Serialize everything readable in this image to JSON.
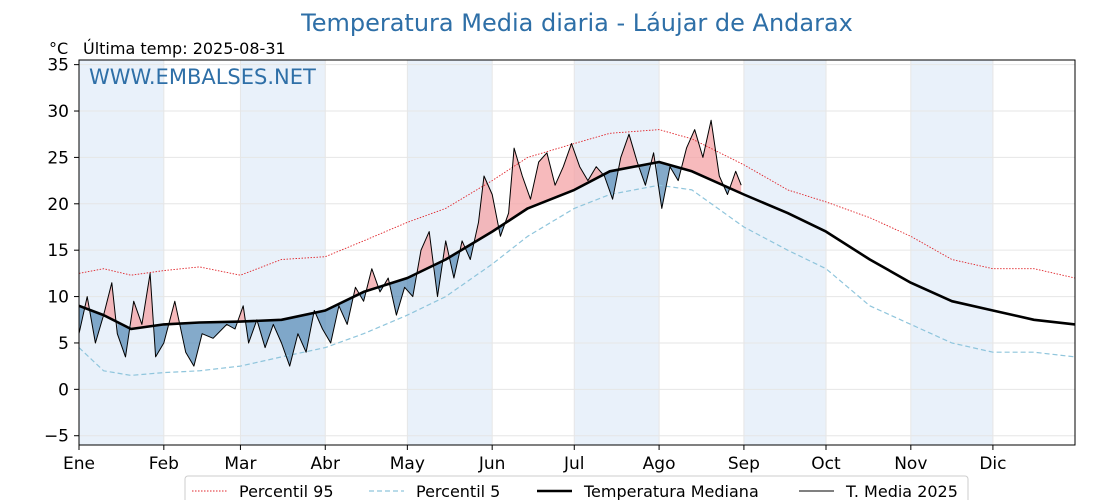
{
  "chart_data": {
    "type": "line",
    "title": "Temperatura Media diaria - Láujar de Andarax",
    "unit_label": "°C",
    "last_temp_label": "Última temp: 2025-08-31",
    "watermark": "WWW.EMBALSES.NET",
    "xlabel": "",
    "ylabel": "",
    "ylim": [
      -6,
      35.5
    ],
    "xlim_days": [
      1,
      365
    ],
    "y_ticks": [
      -5,
      0,
      5,
      10,
      15,
      20,
      25,
      30,
      35
    ],
    "y_tick_labels": [
      "−5",
      "0",
      "5",
      "10",
      "15",
      "20",
      "25",
      "30",
      "35"
    ],
    "month_labels": [
      "Ene",
      "Feb",
      "Mar",
      "Abr",
      "May",
      "Jun",
      "Jul",
      "Ago",
      "Sep",
      "Oct",
      "Nov",
      "Dic"
    ],
    "month_start_days": [
      1,
      32,
      60,
      91,
      121,
      152,
      182,
      213,
      244,
      274,
      305,
      335
    ],
    "grid": true,
    "legend_position": "bottom",
    "colors": {
      "p95": "#e0252b",
      "p5": "#8fc5dc",
      "median": "#000000",
      "current": "#000000",
      "above_fill": "#f4a3a6",
      "below_fill": "#5b8db8",
      "band": "#e9f1fa",
      "title": "#2e6fa7"
    },
    "series": [
      {
        "name": "Percentil 95",
        "key": "p95",
        "style": "dotted",
        "points": [
          [
            1,
            12.5
          ],
          [
            10,
            13
          ],
          [
            20,
            12.3
          ],
          [
            32,
            12.8
          ],
          [
            45,
            13.2
          ],
          [
            60,
            12.3
          ],
          [
            75,
            14
          ],
          [
            91,
            14.3
          ],
          [
            105,
            16
          ],
          [
            121,
            18
          ],
          [
            135,
            19.5
          ],
          [
            152,
            22.5
          ],
          [
            165,
            25
          ],
          [
            182,
            26.5
          ],
          [
            195,
            27.6
          ],
          [
            213,
            28
          ],
          [
            225,
            27
          ],
          [
            244,
            24.2
          ],
          [
            260,
            21.5
          ],
          [
            274,
            20.2
          ],
          [
            290,
            18.5
          ],
          [
            305,
            16.5
          ],
          [
            320,
            14
          ],
          [
            335,
            13
          ],
          [
            350,
            13
          ],
          [
            365,
            12
          ]
        ]
      },
      {
        "name": "Percentil 5",
        "key": "p5",
        "style": "dashed",
        "points": [
          [
            1,
            4.5
          ],
          [
            10,
            2
          ],
          [
            20,
            1.5
          ],
          [
            32,
            1.8
          ],
          [
            45,
            2
          ],
          [
            60,
            2.5
          ],
          [
            75,
            3.5
          ],
          [
            91,
            4.5
          ],
          [
            105,
            6
          ],
          [
            121,
            8
          ],
          [
            135,
            10
          ],
          [
            152,
            13.5
          ],
          [
            165,
            16.5
          ],
          [
            182,
            19.5
          ],
          [
            195,
            21
          ],
          [
            213,
            22
          ],
          [
            225,
            21.5
          ],
          [
            244,
            17.5
          ],
          [
            260,
            15
          ],
          [
            274,
            13
          ],
          [
            290,
            9
          ],
          [
            305,
            7
          ],
          [
            320,
            5
          ],
          [
            335,
            4
          ],
          [
            350,
            4
          ],
          [
            365,
            3.5
          ]
        ]
      },
      {
        "name": "Temperatura Mediana",
        "key": "median",
        "style": "solid-thick",
        "points": [
          [
            1,
            9
          ],
          [
            10,
            8
          ],
          [
            20,
            6.5
          ],
          [
            32,
            7
          ],
          [
            45,
            7.2
          ],
          [
            60,
            7.3
          ],
          [
            75,
            7.5
          ],
          [
            91,
            8.5
          ],
          [
            105,
            10.5
          ],
          [
            121,
            12
          ],
          [
            135,
            14
          ],
          [
            152,
            17
          ],
          [
            165,
            19.5
          ],
          [
            182,
            21.5
          ],
          [
            195,
            23.5
          ],
          [
            213,
            24.5
          ],
          [
            225,
            23.5
          ],
          [
            244,
            21
          ],
          [
            260,
            19
          ],
          [
            274,
            17
          ],
          [
            290,
            14
          ],
          [
            305,
            11.5
          ],
          [
            320,
            9.5
          ],
          [
            335,
            8.5
          ],
          [
            350,
            7.5
          ],
          [
            365,
            7
          ]
        ]
      },
      {
        "name": "T. Media 2025",
        "key": "current",
        "style": "solid-thin",
        "points": [
          [
            1,
            6
          ],
          [
            4,
            10
          ],
          [
            7,
            5
          ],
          [
            10,
            8
          ],
          [
            13,
            11.5
          ],
          [
            15,
            6
          ],
          [
            18,
            3.5
          ],
          [
            21,
            9.5
          ],
          [
            24,
            7
          ],
          [
            27,
            12.5
          ],
          [
            29,
            3.5
          ],
          [
            32,
            5
          ],
          [
            36,
            9.5
          ],
          [
            40,
            4
          ],
          [
            43,
            2.5
          ],
          [
            46,
            6
          ],
          [
            50,
            5.5
          ],
          [
            55,
            7
          ],
          [
            58,
            6.5
          ],
          [
            61,
            9
          ],
          [
            63,
            5
          ],
          [
            66,
            7.5
          ],
          [
            69,
            4.5
          ],
          [
            72,
            7
          ],
          [
            75,
            5
          ],
          [
            78,
            2.5
          ],
          [
            81,
            6
          ],
          [
            84,
            4
          ],
          [
            87,
            8.5
          ],
          [
            90,
            6.5
          ],
          [
            93,
            5
          ],
          [
            96,
            9
          ],
          [
            99,
            7
          ],
          [
            102,
            11
          ],
          [
            105,
            9.5
          ],
          [
            108,
            13
          ],
          [
            111,
            10.5
          ],
          [
            114,
            12
          ],
          [
            117,
            8
          ],
          [
            120,
            11
          ],
          [
            123,
            10
          ],
          [
            126,
            15
          ],
          [
            129,
            17
          ],
          [
            132,
            10
          ],
          [
            135,
            16
          ],
          [
            138,
            12
          ],
          [
            141,
            16
          ],
          [
            144,
            14
          ],
          [
            147,
            18
          ],
          [
            149,
            23
          ],
          [
            152,
            21
          ],
          [
            155,
            16.5
          ],
          [
            158,
            19
          ],
          [
            160,
            26
          ],
          [
            163,
            23
          ],
          [
            166,
            20.5
          ],
          [
            169,
            24.5
          ],
          [
            172,
            25.5
          ],
          [
            175,
            22
          ],
          [
            178,
            24
          ],
          [
            181,
            26.5
          ],
          [
            184,
            24
          ],
          [
            187,
            22.5
          ],
          [
            190,
            24
          ],
          [
            193,
            23
          ],
          [
            196,
            20.5
          ],
          [
            199,
            25
          ],
          [
            202,
            27.5
          ],
          [
            205,
            24.5
          ],
          [
            208,
            22
          ],
          [
            211,
            25.5
          ],
          [
            214,
            19.5
          ],
          [
            217,
            24
          ],
          [
            220,
            22.5
          ],
          [
            223,
            26
          ],
          [
            226,
            28
          ],
          [
            229,
            25
          ],
          [
            232,
            29
          ],
          [
            235,
            23
          ],
          [
            238,
            21
          ],
          [
            241,
            23.5
          ],
          [
            243,
            22
          ]
        ]
      }
    ]
  }
}
